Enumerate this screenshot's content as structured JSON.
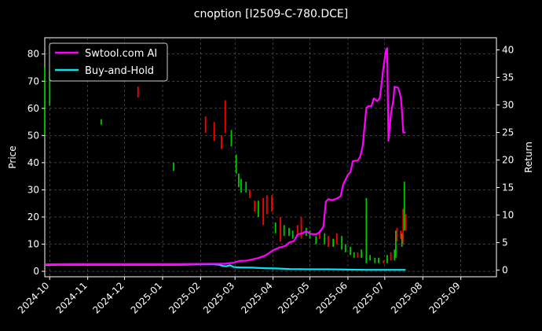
{
  "chart_data": {
    "type": "line",
    "title": "cnoption [I2509-C-780.DCE]",
    "ylabel": "Price",
    "y2label": "Return",
    "ylim": [
      -2,
      86
    ],
    "y2lim": [
      -1.2,
      42.2
    ],
    "xlim": [
      "2024-09-27",
      "2025-09-30"
    ],
    "y_ticks": [
      0,
      10,
      20,
      30,
      40,
      50,
      60,
      70,
      80
    ],
    "y2_ticks": [
      0,
      5,
      10,
      15,
      20,
      25,
      30,
      35,
      40
    ],
    "x_ticks": [
      "2024-10-01",
      "2024-11-01",
      "2024-12-01",
      "2025-01-01",
      "2025-02-01",
      "2025-03-01",
      "2025-04-01",
      "2025-05-01",
      "2025-06-01",
      "2025-07-01",
      "2025-08-01",
      "2025-09-01"
    ],
    "x_tick_labels": [
      "2024-10",
      "2024-11",
      "2024-12",
      "2025-01",
      "2025-02",
      "2025-03",
      "2025-04",
      "2025-05",
      "2025-06",
      "2025-07",
      "2025-08",
      "2025-09"
    ],
    "grid": true,
    "legend_position": "top-left",
    "series": [
      {
        "name": "Swtool.com AI",
        "color": "#ff00ff",
        "axis": "right",
        "points": [
          [
            "2024-09-27",
            1.05
          ],
          [
            "2024-10-15",
            1.1
          ],
          [
            "2024-11-15",
            1.1
          ],
          [
            "2024-12-15",
            1.1
          ],
          [
            "2025-01-15",
            1.1
          ],
          [
            "2025-02-10",
            1.15
          ],
          [
            "2025-02-20",
            1.15
          ],
          [
            "2025-02-28",
            1.35
          ],
          [
            "2025-03-05",
            1.7
          ],
          [
            "2025-03-10",
            1.7
          ],
          [
            "2025-03-20",
            2.2
          ],
          [
            "2025-03-26",
            2.7
          ],
          [
            "2025-04-01",
            3.6
          ],
          [
            "2025-04-06",
            4.1
          ],
          [
            "2025-04-11",
            4.4
          ],
          [
            "2025-04-14",
            5.0
          ],
          [
            "2025-04-18",
            5.3
          ],
          [
            "2025-04-21",
            6.5
          ],
          [
            "2025-04-25",
            6.7
          ],
          [
            "2025-04-28",
            7.1
          ],
          [
            "2025-05-01",
            6.6
          ],
          [
            "2025-05-06",
            6.5
          ],
          [
            "2025-05-09",
            6.9
          ],
          [
            "2025-05-12",
            7.9
          ],
          [
            "2025-05-14",
            12.4
          ],
          [
            "2025-05-16",
            12.9
          ],
          [
            "2025-05-19",
            12.7
          ],
          [
            "2025-05-23",
            13.0
          ],
          [
            "2025-05-26",
            13.4
          ],
          [
            "2025-05-28",
            15.5
          ],
          [
            "2025-06-01",
            17.3
          ],
          [
            "2025-06-03",
            17.8
          ],
          [
            "2025-06-05",
            19.8
          ],
          [
            "2025-06-09",
            19.9
          ],
          [
            "2025-06-11",
            20.6
          ],
          [
            "2025-06-13",
            22.5
          ],
          [
            "2025-06-16",
            29.5
          ],
          [
            "2025-06-18",
            29.8
          ],
          [
            "2025-06-20",
            29.7
          ],
          [
            "2025-06-22",
            31.2
          ],
          [
            "2025-06-25",
            30.7
          ],
          [
            "2025-06-27",
            31.3
          ],
          [
            "2025-06-30",
            37.0
          ],
          [
            "2025-07-02",
            40.0
          ],
          [
            "2025-07-03",
            40.3
          ],
          [
            "2025-07-04",
            23.5
          ],
          [
            "2025-07-06",
            28.2
          ],
          [
            "2025-07-08",
            31.0
          ],
          [
            "2025-07-09",
            33.3
          ],
          [
            "2025-07-12",
            33.1
          ],
          [
            "2025-07-14",
            31.5
          ],
          [
            "2025-07-15",
            29.0
          ],
          [
            "2025-07-16",
            25.0
          ],
          [
            "2025-07-18",
            25.0
          ]
        ]
      },
      {
        "name": "Buy-and-Hold",
        "color": "#00e5ee",
        "axis": "right",
        "points": [
          [
            "2024-09-27",
            0.95
          ],
          [
            "2024-10-10",
            1.0
          ],
          [
            "2024-12-01",
            1.0
          ],
          [
            "2025-01-15",
            1.0
          ],
          [
            "2025-02-10",
            1.1
          ],
          [
            "2025-02-16",
            1.0
          ],
          [
            "2025-02-19",
            0.75
          ],
          [
            "2025-02-22",
            0.7
          ],
          [
            "2025-02-25",
            0.9
          ],
          [
            "2025-02-28",
            0.55
          ],
          [
            "2025-03-05",
            0.5
          ],
          [
            "2025-03-15",
            0.45
          ],
          [
            "2025-03-25",
            0.35
          ],
          [
            "2025-04-05",
            0.3
          ],
          [
            "2025-04-15",
            0.2
          ],
          [
            "2025-05-01",
            0.15
          ],
          [
            "2025-05-15",
            0.15
          ],
          [
            "2025-06-01",
            0.1
          ],
          [
            "2025-06-15",
            0.05
          ],
          [
            "2025-07-01",
            0.05
          ],
          [
            "2025-07-18",
            0.05
          ]
        ]
      }
    ],
    "candles_color_up": "#00c800",
    "candles_color_down": "#ff0000",
    "candles": [
      [
        "2024-09-27",
        50,
        75,
        "up"
      ],
      [
        "2024-10-01",
        61,
        74,
        "up"
      ],
      [
        "2024-11-12",
        54,
        56,
        "up"
      ],
      [
        "2024-12-12",
        64,
        68,
        "down"
      ],
      [
        "2025-01-10",
        37,
        40,
        "up"
      ],
      [
        "2025-02-05",
        51,
        57,
        "down"
      ],
      [
        "2025-02-12",
        48,
        55,
        "down"
      ],
      [
        "2025-02-18",
        45,
        50,
        "down"
      ],
      [
        "2025-02-21",
        51,
        63,
        "down"
      ],
      [
        "2025-02-26",
        46,
        52,
        "up"
      ],
      [
        "2025-03-02",
        36,
        43,
        "up"
      ],
      [
        "2025-03-04",
        31,
        36,
        "up"
      ],
      [
        "2025-03-06",
        29,
        34,
        "up"
      ],
      [
        "2025-03-10",
        29,
        33,
        "up"
      ],
      [
        "2025-03-13",
        27,
        30,
        "down"
      ],
      [
        "2025-03-17",
        22,
        26,
        "down"
      ],
      [
        "2025-03-20",
        20,
        26,
        "up"
      ],
      [
        "2025-03-24",
        17,
        27,
        "down"
      ],
      [
        "2025-03-27",
        21,
        28,
        "down"
      ],
      [
        "2025-03-31",
        22,
        28,
        "down"
      ],
      [
        "2025-04-03",
        14,
        18,
        "up"
      ],
      [
        "2025-04-07",
        11,
        20,
        "down"
      ],
      [
        "2025-04-10",
        13,
        17,
        "up"
      ],
      [
        "2025-04-14",
        13,
        16,
        "up"
      ],
      [
        "2025-04-17",
        12,
        15,
        "up"
      ],
      [
        "2025-04-21",
        14,
        17,
        "down"
      ],
      [
        "2025-04-24",
        12,
        20,
        "down"
      ],
      [
        "2025-04-28",
        13,
        16,
        "up"
      ],
      [
        "2025-05-01",
        12,
        15,
        "up"
      ],
      [
        "2025-05-06",
        10,
        13,
        "up"
      ],
      [
        "2025-05-09",
        12,
        15,
        "down"
      ],
      [
        "2025-05-13",
        10,
        14,
        "up"
      ],
      [
        "2025-05-16",
        9,
        13,
        "down"
      ],
      [
        "2025-05-20",
        9,
        12,
        "up"
      ],
      [
        "2025-05-23",
        10,
        14,
        "down"
      ],
      [
        "2025-05-27",
        8,
        13,
        "up"
      ],
      [
        "2025-05-30",
        7,
        10,
        "up"
      ],
      [
        "2025-06-03",
        6,
        9,
        "up"
      ],
      [
        "2025-06-06",
        5,
        7,
        "up"
      ],
      [
        "2025-06-09",
        5,
        7,
        "down"
      ],
      [
        "2025-06-12",
        5,
        8,
        "up"
      ],
      [
        "2025-06-16",
        3,
        27,
        "up"
      ],
      [
        "2025-06-19",
        4,
        6,
        "up"
      ],
      [
        "2025-06-23",
        3,
        5,
        "up"
      ],
      [
        "2025-06-26",
        3,
        5,
        "up"
      ],
      [
        "2025-06-30",
        3,
        4,
        "down"
      ],
      [
        "2025-07-03",
        3,
        6,
        "up"
      ],
      [
        "2025-07-06",
        4,
        7,
        "down"
      ],
      [
        "2025-07-09",
        4,
        8,
        "up"
      ],
      [
        "2025-07-10",
        5,
        15,
        "up"
      ],
      [
        "2025-07-11",
        11,
        16,
        "down"
      ],
      [
        "2025-07-14",
        12,
        15,
        "down"
      ],
      [
        "2025-07-15",
        9,
        14,
        "up"
      ],
      [
        "2025-07-16",
        10,
        23,
        "down"
      ],
      [
        "2025-07-17",
        15,
        33,
        "up"
      ],
      [
        "2025-07-18",
        15,
        21,
        "down"
      ]
    ]
  }
}
